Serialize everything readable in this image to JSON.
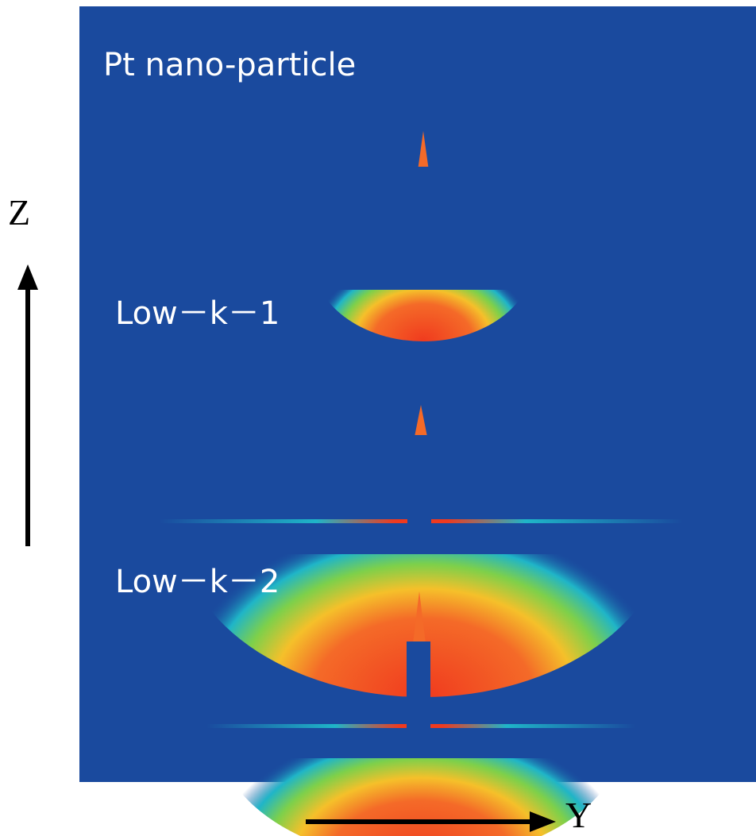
{
  "panel_labels": [
    "Pt nano-particle",
    "Low－k－1",
    "Low－k－2"
  ],
  "axes": {
    "vertical": "Z",
    "horizontal": "Y"
  }
}
